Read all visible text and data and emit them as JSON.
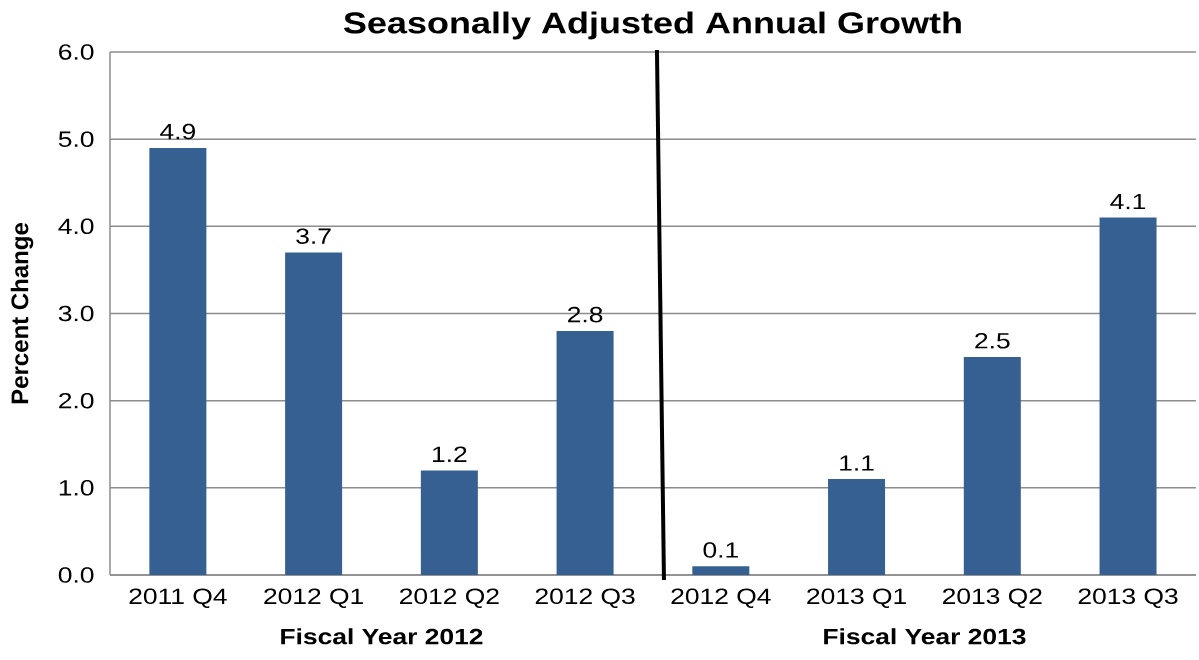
{
  "chart_data": {
    "type": "bar",
    "title": "Seasonally Adjusted Annual Growth",
    "ylabel": "Percent Change",
    "categories": [
      "2011 Q4",
      "2012 Q1",
      "2012 Q2",
      "2012 Q3",
      "2012 Q4",
      "2013 Q1",
      "2013 Q2",
      "2013 Q3"
    ],
    "values": [
      4.9,
      3.7,
      1.2,
      2.8,
      0.1,
      1.1,
      2.5,
      4.1
    ],
    "color": "#376092",
    "ylim": [
      0,
      6
    ],
    "yticks": [
      {
        "value": 0,
        "label": "0.0"
      },
      {
        "value": 1,
        "label": "1.0"
      },
      {
        "value": 2,
        "label": "2.0"
      },
      {
        "value": 3,
        "label": "3.0"
      },
      {
        "value": 4,
        "label": "4.0"
      },
      {
        "value": 5,
        "label": "5.0"
      },
      {
        "value": 6,
        "label": "6.0"
      }
    ],
    "grid": "y",
    "data_labels": true,
    "annotations": [
      "Fiscal Year 2012",
      "Fiscal Year 2013"
    ]
  }
}
